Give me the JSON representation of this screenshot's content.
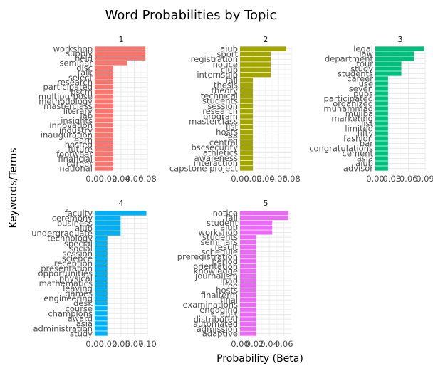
{
  "chart_data": {
    "type": "bar",
    "title": "Word Probabilities by Topic",
    "xlabel": "Probability (Beta)",
    "ylabel": "Keywords/Terms",
    "orientation": "horizontal",
    "grid": true,
    "facets": [
      {
        "name": "1",
        "color": "#F8766D",
        "xlim": [
          0,
          0.08
        ],
        "ticks": [
          "0.00",
          "0.02",
          "0.04",
          "0.06",
          "0.08"
        ],
        "tick_values": [
          0,
          0.02,
          0.04,
          0.06,
          0.08
        ],
        "terms": [
          "workshop",
          "supply",
          "held",
          "seminar",
          "disc",
          "talk",
          "select",
          "research",
          "participated",
          "pscm",
          "multipurpose",
          "methodology",
          "masterclass",
          "literary",
          "lab",
          "insights",
          "innovation",
          "industry",
          "inauguration",
          "learn",
          "hosted",
          "future",
          "footwear",
          "financial",
          "career",
          "national"
        ],
        "values": [
          0.077,
          0.077,
          0.077,
          0.049,
          0.028,
          0.028,
          0.028,
          0.028,
          0.028,
          0.028,
          0.028,
          0.028,
          0.028,
          0.028,
          0.028,
          0.028,
          0.028,
          0.028,
          0.028,
          0.028,
          0.028,
          0.028,
          0.028,
          0.028,
          0.028,
          0.028
        ]
      },
      {
        "name": "2",
        "color": "#A3A500",
        "xlim": [
          0,
          0.08
        ],
        "ticks": [
          "0.00",
          "0.02",
          "0.04",
          "0.06",
          "0.08"
        ],
        "tick_values": [
          0,
          0.02,
          0.04,
          0.06,
          0.08
        ],
        "terms": [
          "aiub",
          "sport",
          "registration",
          "notice",
          "club",
          "internship",
          "fall",
          "thesis",
          "theory",
          "technical",
          "students",
          "session",
          "research",
          "program",
          "masterclass",
          "list",
          "hosts",
          "fee",
          "central",
          "bscsecurity",
          "athletics",
          "awareness",
          "interaction",
          "capstone project"
        ],
        "values": [
          0.072,
          0.048,
          0.048,
          0.048,
          0.048,
          0.048,
          0.02,
          0.02,
          0.02,
          0.02,
          0.02,
          0.02,
          0.02,
          0.02,
          0.02,
          0.02,
          0.02,
          0.02,
          0.02,
          0.02,
          0.02,
          0.02,
          0.02,
          0.02
        ]
      },
      {
        "name": "3",
        "color": "#00BF7D",
        "xlim": [
          0,
          0.09
        ],
        "ticks": [
          "0.00",
          "0.03",
          "0.06",
          "0.09"
        ],
        "tick_values": [
          0,
          0.03,
          0.06,
          0.09
        ],
        "terms": [
          "legal",
          "law",
          "department",
          "tour",
          "study",
          "students",
          "career",
          "use",
          "seven",
          "pubs",
          "participated",
          "organized",
          "muhammad",
          "mujiba",
          "marketing",
          "list",
          "limited",
          "fifty",
          "fashion",
          "bar",
          "congratulations",
          "cement",
          "asia",
          "aiub",
          "advisor"
        ],
        "values": [
          0.088,
          0.07,
          0.07,
          0.047,
          0.047,
          0.047,
          0.023,
          0.023,
          0.023,
          0.023,
          0.023,
          0.023,
          0.023,
          0.023,
          0.023,
          0.023,
          0.023,
          0.023,
          0.023,
          0.023,
          0.023,
          0.023,
          0.023,
          0.023,
          0.023
        ]
      },
      {
        "name": "4",
        "color": "#00B0F6",
        "xlim": [
          0,
          0.1
        ],
        "ticks": [
          "0.00",
          "0.02",
          "0.05",
          "0.07",
          "0.10"
        ],
        "tick_values": [
          0,
          0.025,
          0.05,
          0.075,
          0.1
        ],
        "terms": [
          "faculty",
          "ceremony",
          "business",
          "aiub",
          "undergraduate",
          "technology",
          "special",
          "social",
          "session",
          "science",
          "reception",
          "presentation",
          "opportunities",
          "physical",
          "mathematics",
          "leaving",
          "games",
          "engineering",
          "desk",
          "course",
          "champions",
          "award",
          "asia",
          "administration",
          "study"
        ],
        "values": [
          0.098,
          0.049,
          0.049,
          0.049,
          0.049,
          0.024,
          0.024,
          0.024,
          0.024,
          0.024,
          0.024,
          0.024,
          0.024,
          0.024,
          0.024,
          0.024,
          0.024,
          0.024,
          0.024,
          0.024,
          0.024,
          0.024,
          0.024,
          0.024,
          0.024
        ]
      },
      {
        "name": "5",
        "color": "#E76BF3",
        "xlim": [
          0,
          0.07
        ],
        "ticks": [
          "0.00",
          "0.02",
          "0.04",
          "0.06"
        ],
        "tick_values": [
          0,
          0.02,
          0.04,
          0.06
        ],
        "terms": [
          "notice",
          "fall",
          "student",
          "aiub",
          "workshop",
          "students",
          "seminars",
          "result",
          "schedule",
          "preregistration",
          "period",
          "orientation",
          "knowledge",
          "journalism",
          "ipad",
          "fee",
          "hosts",
          "finalterm",
          "final",
          "examinations",
          "engaging",
          "dust",
          "distributed",
          "automated",
          "admission",
          "adaptive"
        ],
        "values": [
          0.066,
          0.066,
          0.044,
          0.044,
          0.044,
          0.022,
          0.022,
          0.022,
          0.022,
          0.022,
          0.022,
          0.022,
          0.022,
          0.022,
          0.022,
          0.022,
          0.022,
          0.022,
          0.022,
          0.022,
          0.022,
          0.022,
          0.022,
          0.022,
          0.022,
          0.022
        ]
      }
    ]
  }
}
